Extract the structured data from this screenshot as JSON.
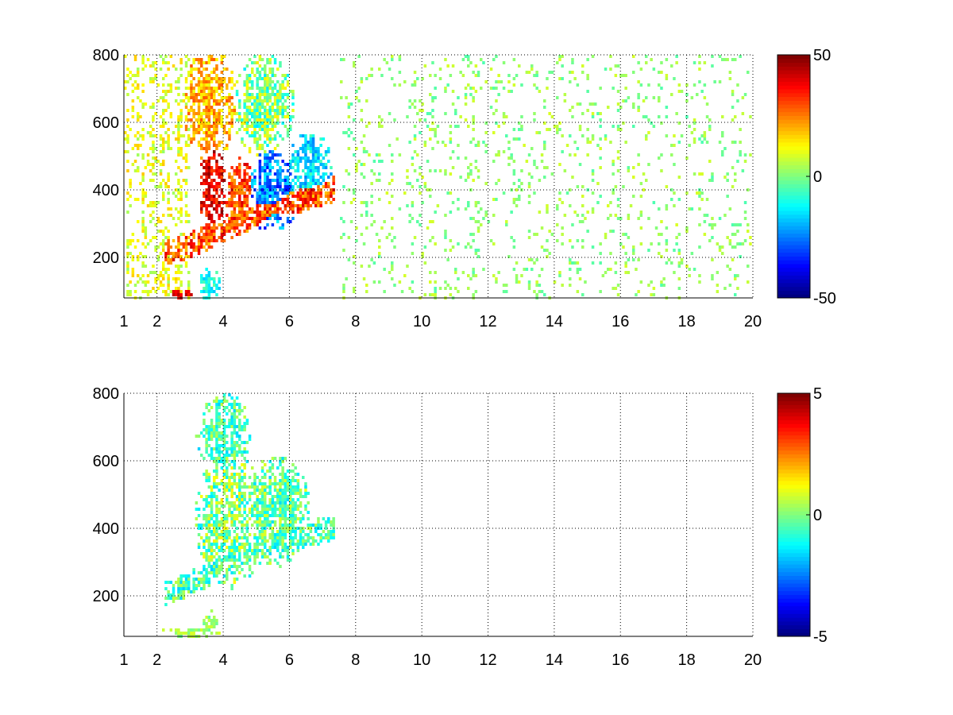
{
  "chart_data": [
    {
      "type": "heatmap",
      "title": "",
      "xlabel": "",
      "ylabel": "",
      "x_range": [
        1,
        20
      ],
      "y_range": [
        80,
        800
      ],
      "x_ticks": [
        1,
        2,
        4,
        6,
        8,
        10,
        12,
        14,
        16,
        18,
        20
      ],
      "x_tick_labels": [
        "1",
        "2",
        "4",
        "6",
        "8",
        "10",
        "12",
        "14",
        "16",
        "18",
        "20"
      ],
      "y_ticks": [
        200,
        400,
        600,
        800
      ],
      "y_tick_labels": [
        "200",
        "400",
        "600",
        "800"
      ],
      "grid": true,
      "colormap": "jet",
      "clim": [
        -50,
        50
      ],
      "colorbar_ticks": [
        -50,
        0,
        50
      ],
      "colorbar_tick_labels": [
        "-50",
        "0",
        "50"
      ],
      "colorbar": "right",
      "features": [
        {
          "kind": "ridge",
          "x": [
            2.4,
            3.5,
            4.5,
            5.5,
            6.5,
            7.2
          ],
          "y": [
            215,
            260,
            310,
            350,
            380,
            400
          ],
          "width": 0.6,
          "value": 30,
          "spread": 12
        },
        {
          "kind": "blob",
          "x": 3.7,
          "y": 400,
          "rx": 0.35,
          "ry": 130,
          "value": 40,
          "spread": 10
        },
        {
          "kind": "blob",
          "x": 4.5,
          "y": 390,
          "rx": 0.4,
          "ry": 90,
          "value": 30,
          "spread": 12
        },
        {
          "kind": "blob",
          "x": 5.5,
          "y": 400,
          "rx": 0.7,
          "ry": 110,
          "value": -25,
          "spread": 12
        },
        {
          "kind": "blob",
          "x": 6.6,
          "y": 460,
          "rx": 0.6,
          "ry": 100,
          "value": -15,
          "spread": 10
        },
        {
          "kind": "blob",
          "x": 3.6,
          "y": 650,
          "rx": 0.7,
          "ry": 150,
          "value": 20,
          "spread": 10
        },
        {
          "kind": "blob",
          "x": 5.2,
          "y": 650,
          "rx": 0.8,
          "ry": 130,
          "value": 0,
          "spread": 15
        },
        {
          "kind": "blob",
          "x": 3.6,
          "y": 120,
          "rx": 0.3,
          "ry": 40,
          "value": -10,
          "spread": 8
        },
        {
          "kind": "blob",
          "x": 2.7,
          "y": 90,
          "rx": 0.4,
          "ry": 15,
          "value": 40,
          "spread": 5
        }
      ],
      "scatter_bands": [
        {
          "x_min": 1,
          "x_max": 3,
          "density": 0.3,
          "value": 10,
          "spread": 8
        },
        {
          "x_min": 7.5,
          "x_max": 20,
          "density": 0.09,
          "value": 2,
          "spread": 7
        }
      ]
    },
    {
      "type": "heatmap",
      "title": "",
      "xlabel": "",
      "ylabel": "",
      "x_range": [
        1,
        20
      ],
      "y_range": [
        80,
        800
      ],
      "x_ticks": [
        1,
        2,
        4,
        6,
        8,
        10,
        12,
        14,
        16,
        18,
        20
      ],
      "x_tick_labels": [
        "1",
        "2",
        "4",
        "6",
        "8",
        "10",
        "12",
        "14",
        "16",
        "18",
        "20"
      ],
      "y_ticks": [
        200,
        400,
        600,
        800
      ],
      "y_tick_labels": [
        "200",
        "400",
        "600",
        "800"
      ],
      "grid": true,
      "colormap": "jet",
      "clim": [
        -5,
        5
      ],
      "colorbar_ticks": [
        -5,
        0,
        5
      ],
      "colorbar_tick_labels": [
        "-5",
        "0",
        "5"
      ],
      "colorbar": "right",
      "features": [
        {
          "kind": "ridge",
          "x": [
            2.4,
            3.5,
            4.5,
            5.5,
            6.5,
            7.2
          ],
          "y": [
            215,
            260,
            310,
            350,
            380,
            400
          ],
          "width": 0.6,
          "value": -0.5,
          "spread": 1.2
        },
        {
          "kind": "blob",
          "x": 4.2,
          "y": 430,
          "rx": 0.9,
          "ry": 180,
          "value": 0,
          "spread": 1.5
        },
        {
          "kind": "blob",
          "x": 5.6,
          "y": 450,
          "rx": 0.9,
          "ry": 140,
          "value": -0.3,
          "spread": 1.3
        },
        {
          "kind": "blob",
          "x": 4.0,
          "y": 680,
          "rx": 0.7,
          "ry": 110,
          "value": -0.5,
          "spread": 1.2
        },
        {
          "kind": "blob",
          "x": 3.0,
          "y": 90,
          "rx": 0.8,
          "ry": 15,
          "value": 0.3,
          "spread": 0.6
        },
        {
          "kind": "blob",
          "x": 3.6,
          "y": 115,
          "rx": 0.2,
          "ry": 35,
          "value": 0.2,
          "spread": 0.6
        }
      ],
      "scatter_bands": []
    }
  ]
}
